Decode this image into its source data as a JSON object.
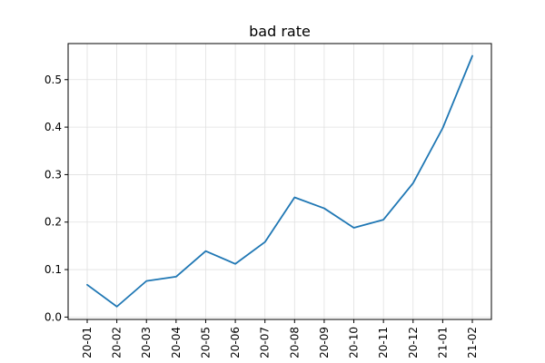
{
  "chart_data": {
    "type": "line",
    "title": "bad rate",
    "xlabel": "",
    "ylabel": "",
    "categories": [
      "20-01",
      "20-02",
      "20-03",
      "20-04",
      "20-05",
      "20-06",
      "20-07",
      "20-08",
      "20-09",
      "20-10",
      "20-11",
      "20-12",
      "21-01",
      "21-02"
    ],
    "series": [
      {
        "values": [
          0.068,
          0.022,
          0.076,
          0.085,
          0.139,
          0.112,
          0.158,
          0.252,
          0.229,
          0.188,
          0.205,
          0.282,
          0.398,
          0.55
        ],
        "color": "#1f77b4"
      }
    ],
    "ylim": [
      -0.005,
      0.576
    ],
    "yticks": [
      0.0,
      0.1,
      0.2,
      0.3,
      0.4,
      0.5
    ],
    "ytick_labels": [
      "0.0",
      "0.1",
      "0.2",
      "0.3",
      "0.4",
      "0.5"
    ],
    "grid": true,
    "xtick_rotation": "vertical"
  }
}
